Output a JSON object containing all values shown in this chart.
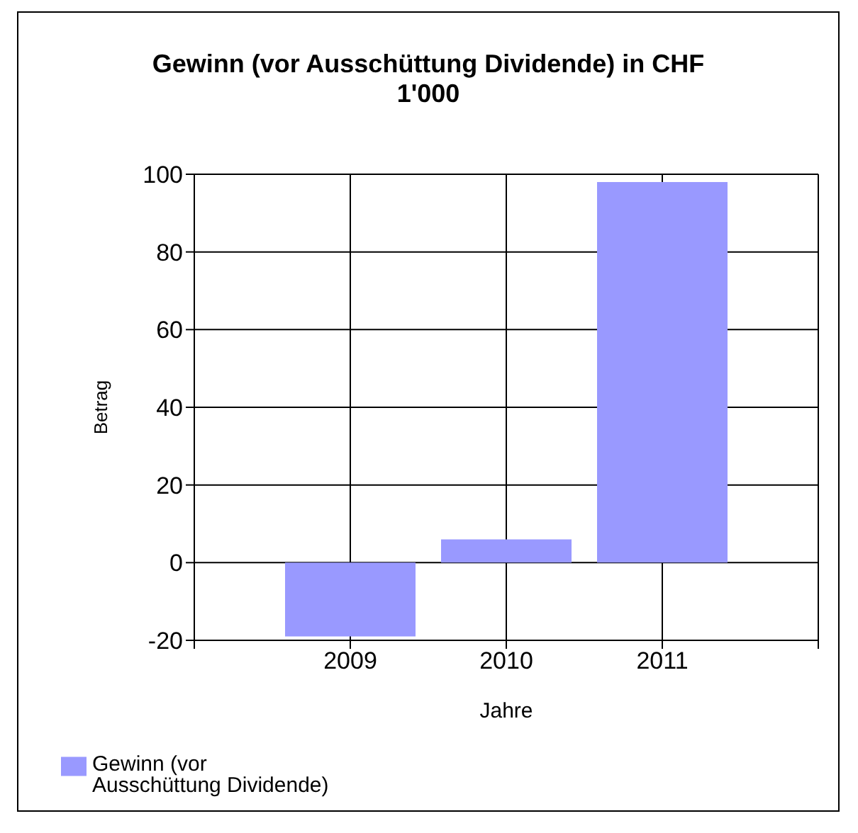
{
  "chart_data": {
    "type": "bar",
    "title": "Gewinn (vor Ausschüttung Dividende) in CHF 1'000",
    "xlabel": "Jahre",
    "ylabel": "Betrag",
    "categories": [
      "2009",
      "2010",
      "2011"
    ],
    "series": [
      {
        "name": "Gewinn (vor Ausschüttung Dividende)",
        "color": "#9999ff",
        "values": [
          -19,
          6,
          98
        ]
      }
    ],
    "ylim": [
      -20,
      100
    ],
    "yticks": [
      -20,
      0,
      20,
      40,
      60,
      80,
      100
    ],
    "grid": true,
    "legend": "bottom left"
  }
}
